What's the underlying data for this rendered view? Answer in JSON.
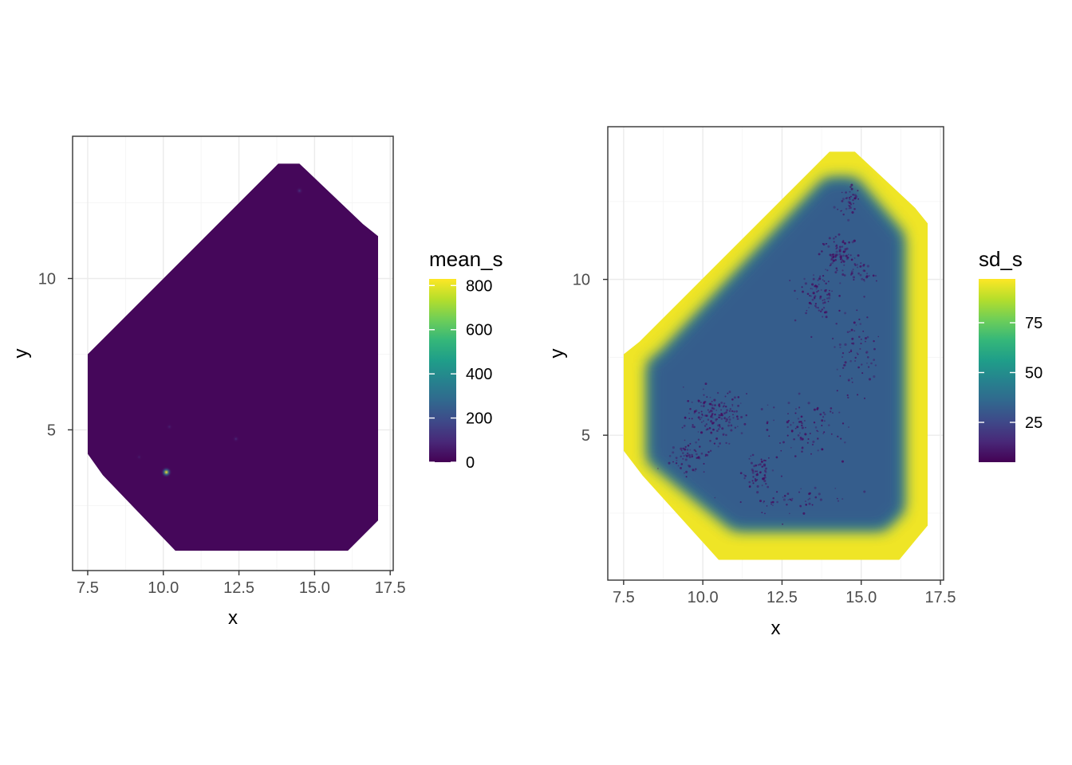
{
  "chart_data": [
    {
      "type": "heatmap",
      "title": "",
      "xlabel": "x",
      "ylabel": "y",
      "xlim": [
        7.0,
        17.6
      ],
      "ylim": [
        0.35,
        14.7
      ],
      "x_ticks": [
        "7.5",
        "10.0",
        "12.5",
        "15.0",
        "17.5"
      ],
      "x_tick_values": [
        7.5,
        10.0,
        12.5,
        15.0,
        17.5
      ],
      "y_ticks": [
        "5",
        "10"
      ],
      "y_tick_values": [
        5,
        10
      ],
      "grid": true,
      "fill_variable": "mean_s",
      "legend": {
        "title": "mean_s",
        "placement": "right",
        "range": [
          0,
          830
        ],
        "ticks": [
          "0",
          "200",
          "400",
          "600",
          "800"
        ],
        "tick_values": [
          0,
          200,
          400,
          600,
          800
        ]
      },
      "region_outline": [
        [
          7.5,
          7.5
        ],
        [
          8.0,
          8.0
        ],
        [
          13.8,
          13.8
        ],
        [
          14.5,
          13.8
        ],
        [
          16.6,
          11.8
        ],
        [
          17.1,
          11.4
        ],
        [
          17.1,
          2.0
        ],
        [
          16.1,
          1.0
        ],
        [
          10.4,
          1.0
        ],
        [
          8.0,
          3.5
        ],
        [
          7.5,
          4.2
        ]
      ],
      "background_value": 15,
      "hotspots": [
        {
          "x": 10.1,
          "y": 3.6,
          "value": 820
        },
        {
          "x": 14.5,
          "y": 12.9,
          "value": 120
        },
        {
          "x": 12.4,
          "y": 4.7,
          "value": 90
        },
        {
          "x": 10.2,
          "y": 5.1,
          "value": 70
        },
        {
          "x": 9.2,
          "y": 4.1,
          "value": 60
        }
      ]
    },
    {
      "type": "heatmap",
      "title": "",
      "xlabel": "x",
      "ylabel": "y",
      "xlim": [
        7.0,
        17.6
      ],
      "ylim": [
        0.35,
        14.9
      ],
      "x_ticks": [
        "7.5",
        "10.0",
        "12.5",
        "15.0",
        "17.5"
      ],
      "x_tick_values": [
        7.5,
        10.0,
        12.5,
        15.0,
        17.5
      ],
      "y_ticks": [
        "5",
        "10"
      ],
      "y_tick_values": [
        5,
        10
      ],
      "grid": true,
      "fill_variable": "sd_s",
      "legend": {
        "title": "sd_s",
        "placement": "right",
        "range": [
          5,
          97
        ],
        "ticks": [
          "25",
          "50",
          "75"
        ],
        "tick_values": [
          25,
          50,
          75
        ]
      },
      "outer_value": 95,
      "inner_value": 32,
      "point_value": 8,
      "region_outline": [
        [
          7.5,
          7.6
        ],
        [
          8.0,
          8.0
        ],
        [
          14.0,
          14.1
        ],
        [
          14.8,
          14.1
        ],
        [
          16.7,
          12.3
        ],
        [
          17.1,
          11.8
        ],
        [
          17.1,
          2.1
        ],
        [
          16.2,
          1.0
        ],
        [
          10.5,
          1.0
        ],
        [
          8.1,
          3.7
        ],
        [
          7.5,
          4.5
        ]
      ],
      "inner_outline": [
        [
          8.3,
          7.3
        ],
        [
          8.7,
          7.6
        ],
        [
          13.9,
          13.2
        ],
        [
          14.8,
          13.2
        ],
        [
          16.3,
          11.4
        ],
        [
          16.3,
          2.6
        ],
        [
          15.7,
          2.0
        ],
        [
          11.0,
          2.0
        ],
        [
          8.3,
          4.2
        ]
      ],
      "point_clusters": [
        {
          "x": 10.4,
          "y": 5.6,
          "sx": 0.8,
          "sy": 0.7,
          "n": 160
        },
        {
          "x": 9.6,
          "y": 4.3,
          "sx": 0.5,
          "sy": 0.4,
          "n": 60
        },
        {
          "x": 11.7,
          "y": 3.8,
          "sx": 0.4,
          "sy": 0.5,
          "n": 60
        },
        {
          "x": 13.6,
          "y": 9.6,
          "sx": 0.5,
          "sy": 0.6,
          "n": 80
        },
        {
          "x": 14.3,
          "y": 10.8,
          "sx": 0.5,
          "sy": 0.5,
          "n": 80
        },
        {
          "x": 14.6,
          "y": 12.6,
          "sx": 0.3,
          "sy": 0.4,
          "n": 40
        },
        {
          "x": 13.2,
          "y": 5.2,
          "sx": 1.0,
          "sy": 0.8,
          "n": 90
        },
        {
          "x": 14.8,
          "y": 7.8,
          "sx": 0.6,
          "sy": 1.2,
          "n": 70
        },
        {
          "x": 12.9,
          "y": 2.9,
          "sx": 1.4,
          "sy": 0.4,
          "n": 50
        },
        {
          "x": 15.1,
          "y": 10.2,
          "sx": 0.4,
          "sy": 0.3,
          "n": 30
        }
      ]
    }
  ],
  "viridis": [
    "#440154",
    "#482878",
    "#3e4989",
    "#31688e",
    "#26828e",
    "#1f9e89",
    "#35b779",
    "#6ece58",
    "#b5de2b",
    "#fde725"
  ]
}
